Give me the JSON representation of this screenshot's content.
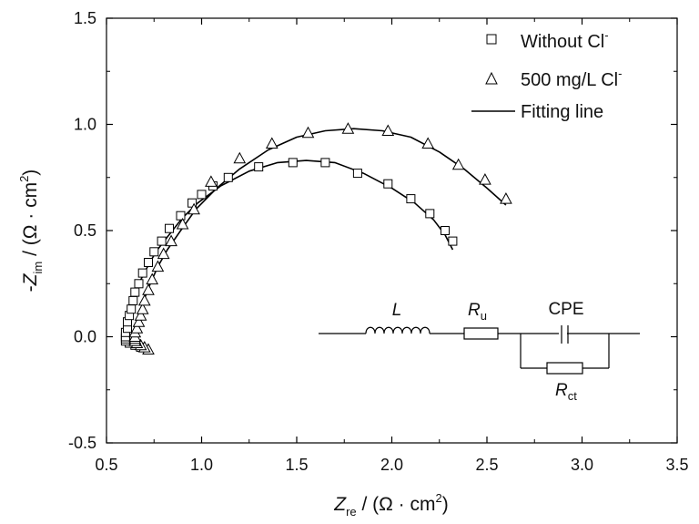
{
  "chart_data": {
    "type": "scatter",
    "xlabel": {
      "main": "Z",
      "sub": "re",
      "unit_pre": " / (Ω · cm",
      "sup": "2",
      "unit_post": ")"
    },
    "ylabel": {
      "prefix": "-",
      "main": "Z",
      "sub": "im",
      "unit_pre": " / (Ω · cm",
      "sup": "2",
      "unit_post": ")"
    },
    "xlim": [
      0.5,
      3.5
    ],
    "ylim": [
      -0.5,
      1.5
    ],
    "xticks": [
      "0.5",
      "1.0",
      "1.5",
      "2.0",
      "2.5",
      "3.0",
      "3.5"
    ],
    "yticks": [
      "-0.5",
      "0.0",
      "0.5",
      "1.0",
      "1.5"
    ],
    "legend": {
      "placement": "top-right",
      "entries": [
        {
          "label": "Without Cl",
          "sup": "-",
          "marker": "square"
        },
        {
          "label": "500 mg/L Cl",
          "sup": "-",
          "marker": "triangle"
        },
        {
          "label": "Fitting line",
          "marker": "line"
        }
      ]
    },
    "series": [
      {
        "name": "Without Cl-",
        "marker": "square",
        "x": [
          0.68,
          0.65,
          0.62,
          0.6,
          0.6,
          0.6,
          0.6,
          0.61,
          0.61,
          0.62,
          0.63,
          0.64,
          0.65,
          0.67,
          0.69,
          0.72,
          0.75,
          0.79,
          0.83,
          0.89,
          0.95,
          1.0,
          1.06,
          1.14,
          1.3,
          1.48,
          1.65,
          1.82,
          1.98,
          2.1,
          2.2,
          2.28,
          2.32
        ],
        "y": [
          -0.05,
          -0.04,
          -0.03,
          -0.02,
          -0.01,
          0.0,
          0.02,
          0.04,
          0.07,
          0.1,
          0.13,
          0.17,
          0.21,
          0.25,
          0.3,
          0.35,
          0.4,
          0.45,
          0.51,
          0.57,
          0.63,
          0.67,
          0.71,
          0.75,
          0.8,
          0.82,
          0.82,
          0.77,
          0.72,
          0.65,
          0.58,
          0.5,
          0.45
        ]
      },
      {
        "name": "500 mg/L Cl-",
        "marker": "triangle",
        "x": [
          0.72,
          0.7,
          0.68,
          0.66,
          0.65,
          0.65,
          0.65,
          0.65,
          0.66,
          0.67,
          0.68,
          0.69,
          0.7,
          0.72,
          0.74,
          0.77,
          0.8,
          0.84,
          0.9,
          0.96,
          1.05,
          1.2,
          1.37,
          1.56,
          1.77,
          1.98,
          2.19,
          2.35,
          2.49,
          2.6
        ],
        "y": [
          -0.06,
          -0.05,
          -0.04,
          -0.03,
          -0.02,
          -0.01,
          0.0,
          0.02,
          0.04,
          0.07,
          0.1,
          0.13,
          0.17,
          0.22,
          0.27,
          0.33,
          0.39,
          0.45,
          0.53,
          0.6,
          0.73,
          0.84,
          0.91,
          0.96,
          0.98,
          0.97,
          0.91,
          0.81,
          0.74,
          0.65
        ]
      }
    ],
    "fits": [
      {
        "name": "Fitting line (without Cl-)",
        "x": [
          0.62,
          0.6,
          0.6,
          0.6,
          0.61,
          0.62,
          0.64,
          0.67,
          0.71,
          0.76,
          0.82,
          0.9,
          0.98,
          1.1,
          1.25,
          1.4,
          1.55,
          1.7,
          1.85,
          2.0,
          2.12,
          2.22,
          2.28,
          2.32
        ],
        "y": [
          -0.04,
          -0.02,
          0.0,
          0.03,
          0.07,
          0.12,
          0.18,
          0.25,
          0.32,
          0.4,
          0.47,
          0.56,
          0.63,
          0.71,
          0.78,
          0.82,
          0.83,
          0.82,
          0.77,
          0.7,
          0.63,
          0.55,
          0.48,
          0.41
        ]
      },
      {
        "name": "Fitting line (500 mg/L Cl-)",
        "x": [
          0.66,
          0.65,
          0.65,
          0.65,
          0.66,
          0.68,
          0.7,
          0.73,
          0.77,
          0.82,
          0.89,
          0.97,
          1.08,
          1.2,
          1.35,
          1.5,
          1.65,
          1.8,
          1.95,
          2.1,
          2.25,
          2.38,
          2.5,
          2.6
        ],
        "y": [
          -0.04,
          -0.02,
          0.0,
          0.03,
          0.07,
          0.12,
          0.18,
          0.25,
          0.33,
          0.41,
          0.5,
          0.6,
          0.7,
          0.79,
          0.88,
          0.94,
          0.97,
          0.98,
          0.97,
          0.94,
          0.87,
          0.79,
          0.7,
          0.62
        ]
      }
    ],
    "inset": {
      "type": "equivalent-circuit",
      "elements": [
        {
          "name": "inductor",
          "label": "L"
        },
        {
          "name": "resistor-u",
          "label": "R",
          "sub": "u"
        },
        {
          "name": "constant-phase-element",
          "label": "CPE"
        },
        {
          "name": "resistor-ct",
          "label": "R",
          "sub": "ct"
        }
      ]
    }
  }
}
